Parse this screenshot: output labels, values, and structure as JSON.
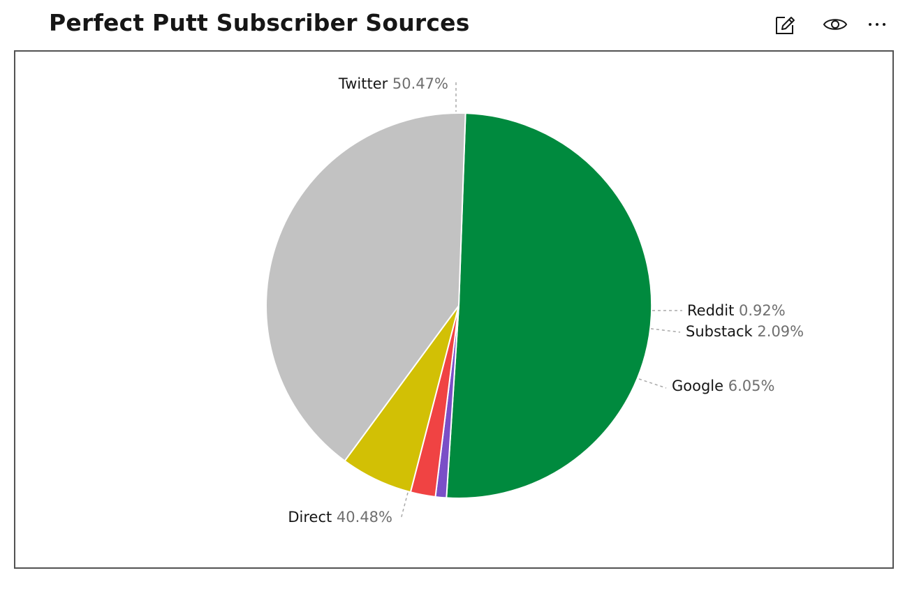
{
  "header": {
    "title": "Perfect Putt Subscriber Sources",
    "icons": {
      "edit": "edit-icon",
      "view": "eye-icon",
      "more": "overflow-menu-icon"
    }
  },
  "chart_data": {
    "type": "pie",
    "title": "Perfect Putt Subscriber Sources",
    "slices": [
      {
        "label": "Twitter",
        "value": 50.47,
        "display": "50.47%",
        "color": "#008a3e"
      },
      {
        "label": "Reddit",
        "value": 0.92,
        "display": "0.92%",
        "color": "#7a4fc7"
      },
      {
        "label": "Substack",
        "value": 2.09,
        "display": "2.09%",
        "color": "#f04343"
      },
      {
        "label": "Google",
        "value": 6.05,
        "display": "6.05%",
        "color": "#d2c005"
      },
      {
        "label": "Direct",
        "value": 40.48,
        "display": "40.48%",
        "color": "#c2c2c2"
      }
    ],
    "start_angle_deg": -88,
    "direction": "clockwise",
    "legend": "none",
    "labels": "outside-with-leader-lines"
  }
}
